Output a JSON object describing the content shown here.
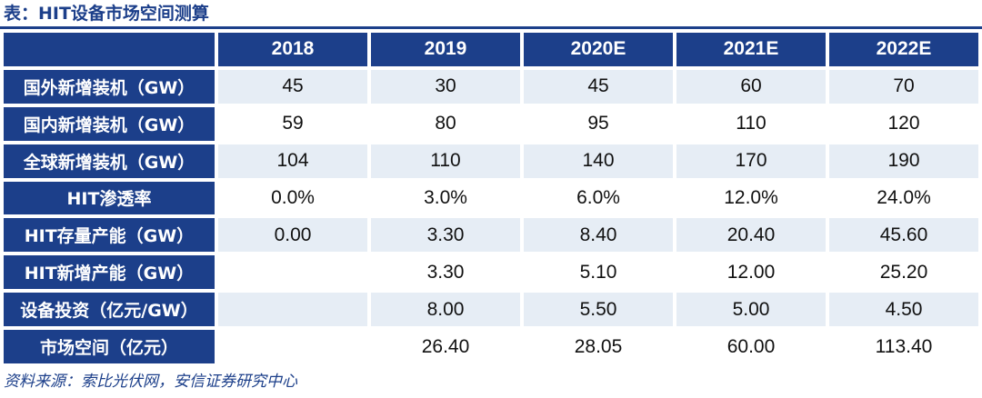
{
  "title": "表：HIT设备市场空间测算",
  "table": {
    "columns": [
      "2018",
      "2019",
      "2020E",
      "2021E",
      "2022E"
    ],
    "rows": [
      {
        "label": "国外新增装机（GW）",
        "values": [
          "45",
          "30",
          "45",
          "60",
          "70"
        ]
      },
      {
        "label": "国内新增装机（GW）",
        "values": [
          "59",
          "80",
          "95",
          "110",
          "120"
        ]
      },
      {
        "label": "全球新增装机（GW）",
        "values": [
          "104",
          "110",
          "140",
          "170",
          "190"
        ]
      },
      {
        "label": "HIT渗透率",
        "values": [
          "0.0%",
          "3.0%",
          "6.0%",
          "12.0%",
          "24.0%"
        ]
      },
      {
        "label": "HIT存量产能（GW）",
        "values": [
          "0.00",
          "3.30",
          "8.40",
          "20.40",
          "45.60"
        ]
      },
      {
        "label": "HIT新增产能（GW）",
        "values": [
          "",
          "3.30",
          "5.10",
          "12.00",
          "25.20"
        ]
      },
      {
        "label": "设备投资（亿元/GW）",
        "values": [
          "",
          "8.00",
          "5.50",
          "5.00",
          "4.50"
        ]
      },
      {
        "label": "市场空间（亿元）",
        "values": [
          "",
          "26.40",
          "28.05",
          "60.00",
          "113.40"
        ]
      }
    ]
  },
  "source": "资料来源：索比光伏网，安信证券研究中心",
  "colors": {
    "header_bg": "#1c3f8a",
    "header_text": "#ffffff",
    "odd_row_bg": "#e6edf5",
    "even_row_bg": "#ffffff",
    "title_color": "#1c3f8a"
  }
}
